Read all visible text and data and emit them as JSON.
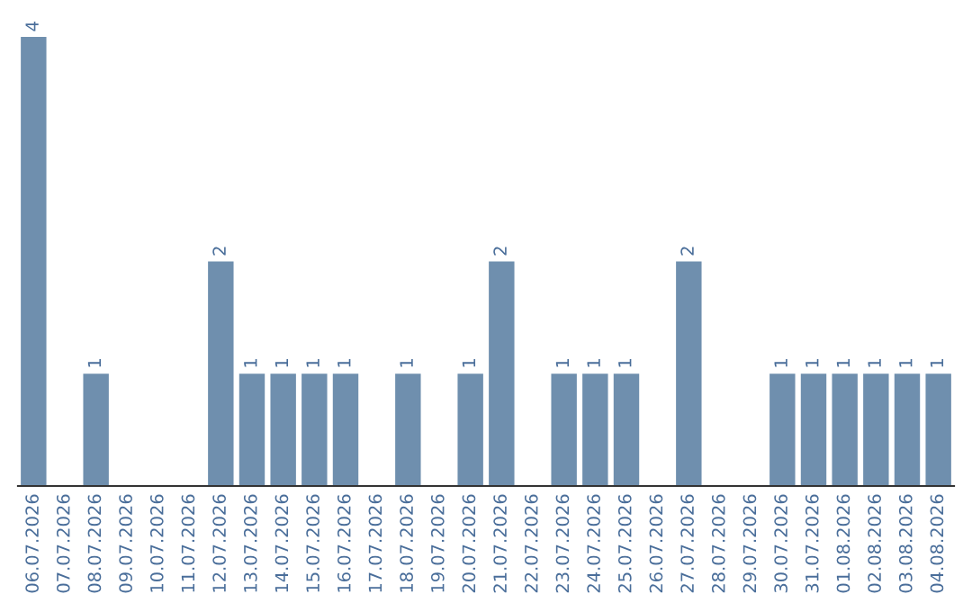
{
  "chart_data": {
    "type": "bar",
    "categories": [
      "06.07.2026",
      "07.07.2026",
      "08.07.2026",
      "09.07.2026",
      "10.07.2026",
      "11.07.2026",
      "12.07.2026",
      "13.07.2026",
      "14.07.2026",
      "15.07.2026",
      "16.07.2026",
      "17.07.2026",
      "18.07.2026",
      "19.07.2026",
      "20.07.2026",
      "21.07.2026",
      "22.07.2026",
      "23.07.2026",
      "24.07.2026",
      "25.07.2026",
      "26.07.2026",
      "27.07.2026",
      "28.07.2026",
      "29.07.2026",
      "30.07.2026",
      "31.07.2026",
      "01.08.2026",
      "02.08.2026",
      "03.08.2026",
      "04.08.2026"
    ],
    "values": [
      4,
      0,
      1,
      0,
      0,
      0,
      2,
      1,
      1,
      1,
      1,
      0,
      1,
      0,
      1,
      2,
      0,
      1,
      1,
      1,
      0,
      2,
      0,
      0,
      1,
      1,
      1,
      1,
      1,
      1
    ],
    "value_labels": [
      "4",
      null,
      "1",
      null,
      null,
      null,
      "2",
      "1",
      "1",
      "1",
      "1",
      null,
      "1",
      null,
      "1",
      "2",
      null,
      "1",
      "1",
      "1",
      null,
      "2",
      null,
      null,
      "1",
      "1",
      "1",
      "1",
      "1",
      "1"
    ],
    "color": "#6f8fae",
    "grid": false,
    "legend": false
  }
}
